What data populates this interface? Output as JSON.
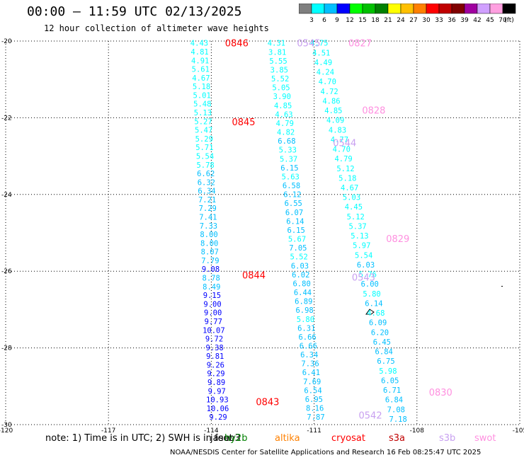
{
  "title": "00:00 – 11:59 UTC 02/13/2025",
  "subtitle": "12 hour collection of altimeter wave heights",
  "note": "note: 1) Time is in UTC; 2) SWH is in feet",
  "footer": "NOAA/NESDIS Center for Satellite Applications and Research    16 Feb 08:25:47 UTC 2025",
  "colorbar": {
    "labels": [
      "3",
      "6",
      "9",
      "12",
      "15",
      "18",
      "21",
      "24",
      "27",
      "30",
      "33",
      "36",
      "39",
      "42",
      "45",
      "70",
      "(ft)"
    ],
    "colors": [
      "#7f7f7f",
      "#00ffff",
      "#00bfff",
      "#0000ff",
      "#00ff00",
      "#00c000",
      "#008000",
      "#ffff00",
      "#ffc000",
      "#ff8000",
      "#ff0000",
      "#c00000",
      "#800000",
      "#a000a0",
      "#d0a0ff",
      "#ffa0e0",
      "#000000"
    ]
  },
  "legend": [
    {
      "name": "jason3",
      "label": "jason3",
      "color": "#000000"
    },
    {
      "name": "hy2b",
      "label": "hy2b",
      "color": "#008000"
    },
    {
      "name": "altika",
      "label": "altika",
      "color": "#ff8000"
    },
    {
      "name": "cryosat",
      "label": "cryosat",
      "color": "#ff0000"
    },
    {
      "name": "s3a",
      "label": "s3a",
      "color": "#c00000"
    },
    {
      "name": "s3b",
      "label": "s3b",
      "color": "#c8a0f0"
    },
    {
      "name": "swot",
      "label": "swot",
      "color": "#ff90e0"
    }
  ],
  "chart_data": {
    "type": "scatter",
    "xlim": [
      -120,
      -105
    ],
    "ylim": [
      -30,
      -20
    ],
    "xticks": [
      {
        "value": -120,
        "label": "-120"
      },
      {
        "value": -117,
        "label": "-117"
      },
      {
        "value": -114,
        "label": "-114"
      },
      {
        "value": -111,
        "label": "-111"
      },
      {
        "value": -108,
        "label": "-108"
      },
      {
        "value": -105,
        "label": "-105"
      }
    ],
    "yticks": [
      {
        "value": -20,
        "label": "-20"
      },
      {
        "value": -22,
        "label": "-22"
      },
      {
        "value": -24,
        "label": "-24"
      },
      {
        "value": -26,
        "label": "-26"
      },
      {
        "value": -28,
        "label": "-28"
      },
      {
        "value": -30,
        "label": "-30"
      }
    ],
    "grid": true,
    "tracks": [
      {
        "satellite": "cryosat",
        "color": "#ff0000",
        "start": [
          -114.35,
          -20.05
        ],
        "end": [
          -113.8,
          -29.8
        ],
        "values": [
          "4.43",
          "4.81",
          "4.91",
          "5.61",
          "4.67",
          "5.18",
          "5.01",
          "5.48",
          "5.13",
          "5.27",
          "5.47",
          "5.29",
          "5.71",
          "5.54",
          "5.78",
          "6.62",
          "6.32",
          "6.34",
          "7.21",
          "7.29",
          "7.41",
          "7.33",
          "8.00",
          "8.00",
          "8.07",
          "7.79",
          "9.08",
          "8.78",
          "8.49",
          "9.15",
          "9.00",
          "9.00",
          "9.77",
          "10.07",
          "9.72",
          "9.38",
          "9.81",
          "9.26",
          "9.29",
          "9.89",
          "9.97",
          "10.93",
          "10.06",
          "9.29"
        ],
        "times": [
          {
            "label": "0846",
            "lon": -113.6,
            "lat": -20.05
          },
          {
            "label": "0845",
            "lon": -113.4,
            "lat": -22.1
          },
          {
            "label": "0844",
            "lon": -113.1,
            "lat": -26.1
          },
          {
            "label": "0843",
            "lon": -112.7,
            "lat": -29.4
          }
        ]
      },
      {
        "satellite": "s3b",
        "color": "#c8a0f0",
        "start": [
          -112.1,
          -20.05
        ],
        "end": [
          -110.95,
          -29.8
        ],
        "values": [
          "4.31",
          "3.81",
          "5.55",
          "3.85",
          "5.52",
          "5.05",
          "3.90",
          "4.85",
          "4.63",
          "4.79",
          "4.82",
          "6.68",
          "5.33",
          "5.37",
          "6.15",
          "5.63",
          "6.58",
          "6.12",
          "6.55",
          "6.07",
          "6.14",
          "6.15",
          "5.67",
          "7.05",
          "5.52",
          "6.03",
          "6.02",
          "6.80",
          "6.44",
          "6.89",
          "6.98",
          "5.80",
          "6.31",
          "6.66",
          "6.66",
          "6.34",
          "7.36",
          "6.41",
          "7.69",
          "6.54",
          "6.95",
          "8.16",
          "7.87"
        ],
        "times": [
          {
            "label": "0545",
            "lon": -111.5,
            "lat": -20.05
          },
          {
            "label": "0544",
            "lon": -110.45,
            "lat": -22.65
          },
          {
            "label": "0543",
            "lon": -109.9,
            "lat": -26.15
          },
          {
            "label": "0542",
            "lon": -109.7,
            "lat": -29.75
          }
        ]
      },
      {
        "satellite": "swot",
        "color": "#ff90e0",
        "start": [
          -110.85,
          -20.05
        ],
        "end": [
          -108.55,
          -29.85
        ],
        "values": [
          "4.75",
          "4.51",
          "4.49",
          "4.24",
          "4.70",
          "4.72",
          "4.86",
          "4.85",
          "4.09",
          "4.83",
          "4.77",
          "4.70",
          "4.79",
          "5.12",
          "5.18",
          "4.67",
          "5.03",
          "4.45",
          "5.12",
          "5.37",
          "5.13",
          "5.97",
          "5.54",
          "6.03",
          "5.76",
          "6.00",
          "5.80",
          "6.14",
          "4.68",
          "6.09",
          "6.20",
          "6.45",
          "6.84",
          "6.75",
          "5.98",
          "6.05",
          "6.71",
          "6.84",
          "7.08",
          "7.18"
        ],
        "times": [
          {
            "label": "0827",
            "lon": -110.0,
            "lat": -20.05
          },
          {
            "label": "0828",
            "lon": -109.6,
            "lat": -21.8
          },
          {
            "label": "0829",
            "lon": -108.9,
            "lat": -25.15
          },
          {
            "label": "0830",
            "lon": -107.65,
            "lat": -29.15
          }
        ]
      }
    ]
  }
}
